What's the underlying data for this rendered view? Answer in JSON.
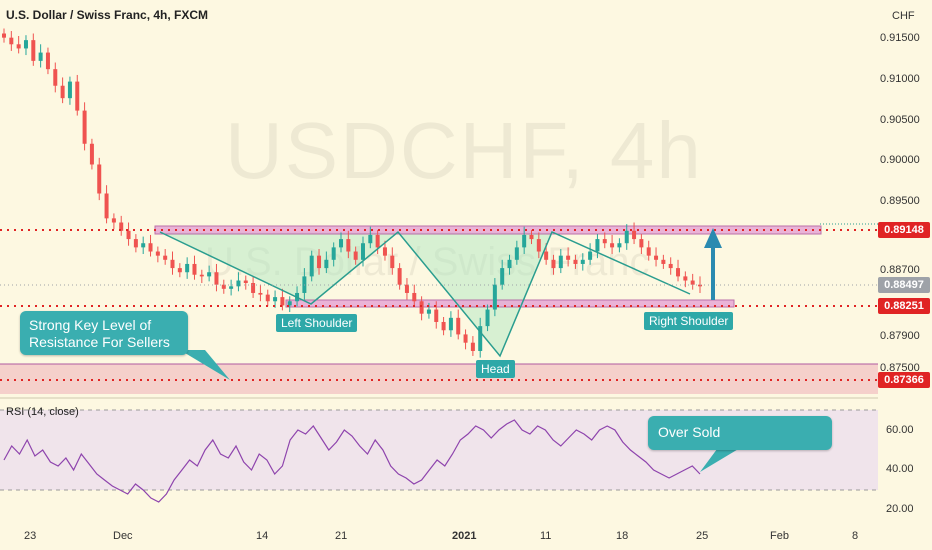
{
  "header": {
    "title": "U.S. Dollar / Swiss Franc, 4h, FXCM"
  },
  "currency": "CHF",
  "watermark": {
    "symbol": "USDCHF, 4h",
    "name": "U.S. Dollar / Swiss Franc"
  },
  "price_axis": [
    "0.91500",
    "0.91000",
    "0.90500",
    "0.90000",
    "0.89500",
    "0.88700",
    "0.87900",
    "0.87500"
  ],
  "price_tags": {
    "resistance": "0.89148",
    "current": "0.88497",
    "neckline": "0.88251",
    "support": "0.87366"
  },
  "colors": {
    "red_tag": "#e02424",
    "gray_tag": "#9ea2a8",
    "teal": "#2ea8a8",
    "up": "#26a69a",
    "down": "#ef5350",
    "rsi": "#8e44ad"
  },
  "labels": {
    "left_shoulder": "Left Shoulder",
    "head": "Head",
    "right_shoulder": "Right Shoulder",
    "key_level": "Strong Key Level of Resistance For Sellers",
    "over_sold": "Over Sold"
  },
  "rsi": {
    "title": "RSI (14, close)",
    "axis": [
      "60.00",
      "40.00",
      "20.00"
    ]
  },
  "date_axis": [
    "23",
    "Dec",
    "14",
    "21",
    "2021",
    "11",
    "18",
    "25",
    "Feb",
    "8"
  ],
  "chart_data": {
    "type": "candlestick",
    "symbol": "USDCHF",
    "interval": "4h",
    "levels": {
      "resistance": 0.89148,
      "current": 0.88497,
      "neckline": 0.88251,
      "support": 0.87366
    },
    "close_series": [
      0.9148,
      0.914,
      0.9135,
      0.9145,
      0.912,
      0.913,
      0.911,
      0.909,
      0.9075,
      0.9095,
      0.906,
      0.902,
      0.8995,
      0.896,
      0.893,
      0.8925,
      0.8915,
      0.8905,
      0.8895,
      0.89,
      0.889,
      0.8885,
      0.888,
      0.887,
      0.8865,
      0.8875,
      0.8862,
      0.886,
      0.8865,
      0.885,
      0.8845,
      0.8848,
      0.8855,
      0.8852,
      0.884,
      0.8838,
      0.883,
      0.8835,
      0.8825,
      0.883,
      0.884,
      0.886,
      0.8885,
      0.887,
      0.888,
      0.8895,
      0.8905,
      0.889,
      0.888,
      0.89,
      0.891,
      0.8895,
      0.8885,
      0.887,
      0.885,
      0.884,
      0.883,
      0.8815,
      0.882,
      0.8805,
      0.8795,
      0.881,
      0.879,
      0.878,
      0.877,
      0.88,
      0.882,
      0.885,
      0.887,
      0.888,
      0.8895,
      0.891,
      0.8905,
      0.889,
      0.888,
      0.887,
      0.8885,
      0.888,
      0.8875,
      0.888,
      0.889,
      0.8905,
      0.89,
      0.8895,
      0.89,
      0.8915,
      0.8905,
      0.8895,
      0.8885,
      0.888,
      0.8875,
      0.887,
      0.886,
      0.8855,
      0.885,
      0.8848
    ],
    "rsi_values": [
      45,
      52,
      48,
      55,
      47,
      50,
      44,
      42,
      46,
      40,
      48,
      43,
      38,
      35,
      32,
      30,
      28,
      33,
      30,
      26,
      24,
      28,
      35,
      40,
      45,
      42,
      50,
      55,
      48,
      46,
      52,
      44,
      40,
      48,
      45,
      38,
      42,
      55,
      60,
      58,
      62,
      56,
      50,
      54,
      60,
      57,
      52,
      48,
      55,
      50,
      42,
      38,
      36,
      33,
      35,
      40,
      45,
      42,
      48,
      55,
      58,
      62,
      60,
      56,
      60,
      63,
      65,
      60,
      58,
      62,
      60,
      55,
      52,
      56,
      60,
      58,
      55,
      60,
      62,
      60,
      54,
      50,
      47,
      44,
      40,
      38,
      36,
      38,
      40,
      42,
      38
    ]
  }
}
